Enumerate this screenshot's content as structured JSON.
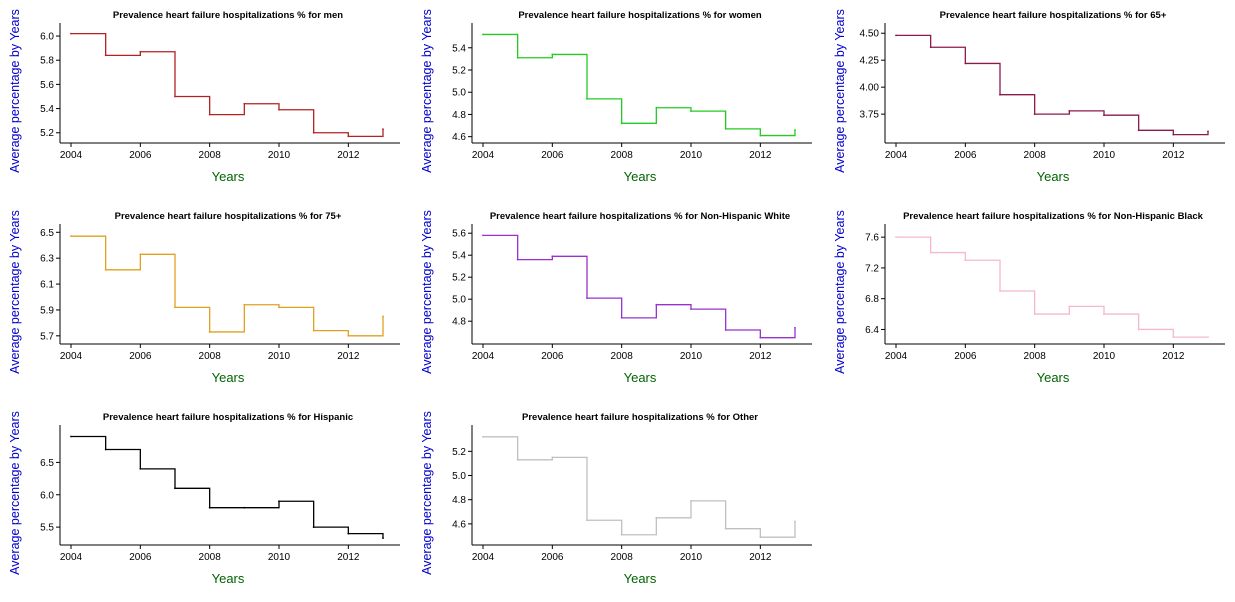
{
  "xlabel": "Years",
  "ylabel": "Average percentage by Years",
  "label_colors": {
    "xlabel": "#006400",
    "ylabel": "#0000cd"
  },
  "chart_data": [
    {
      "type": "line",
      "step": "post",
      "title": "Prevalence heart failure hospitalizations % for men",
      "color": "#b22222",
      "x": [
        2004,
        2005,
        2006,
        2007,
        2008,
        2009,
        2010,
        2011,
        2012,
        2013
      ],
      "values": [
        6.02,
        5.84,
        5.87,
        5.5,
        5.35,
        5.44,
        5.39,
        5.2,
        5.17,
        5.23
      ],
      "xticks": [
        "2004",
        "2006",
        "2008",
        "2010",
        "2012"
      ],
      "yticks": [
        "5.2",
        "5.4",
        "5.6",
        "5.8",
        "6.0"
      ],
      "xlim": [
        2004,
        2013
      ],
      "ylim": [
        5.14,
        6.05
      ]
    },
    {
      "type": "line",
      "step": "post",
      "title": "Prevalence heart failure hospitalizations % for women",
      "color": "#22cc22",
      "x": [
        2004,
        2005,
        2006,
        2007,
        2008,
        2009,
        2010,
        2011,
        2012,
        2013
      ],
      "values": [
        5.52,
        5.31,
        5.34,
        4.94,
        4.72,
        4.86,
        4.83,
        4.67,
        4.61,
        4.66
      ],
      "xticks": [
        "2004",
        "2006",
        "2008",
        "2010",
        "2012"
      ],
      "yticks": [
        "4.6",
        "4.8",
        "5.0",
        "5.2",
        "5.4"
      ],
      "xlim": [
        2004,
        2013
      ],
      "ylim": [
        4.57,
        5.56
      ]
    },
    {
      "type": "line",
      "step": "post",
      "title": "Prevalence heart failure hospitalizations % for 65+",
      "color": "#8b1a4a",
      "x": [
        2004,
        2005,
        2006,
        2007,
        2008,
        2009,
        2010,
        2011,
        2012,
        2013
      ],
      "values": [
        4.48,
        4.37,
        4.22,
        3.93,
        3.75,
        3.78,
        3.74,
        3.6,
        3.56,
        3.59
      ],
      "xticks": [
        "2004",
        "2006",
        "2008",
        "2010",
        "2012"
      ],
      "yticks": [
        "3.75",
        "4.00",
        "4.25",
        "4.50"
      ],
      "xlim": [
        2004,
        2013
      ],
      "ylim": [
        3.51,
        4.53
      ]
    },
    {
      "type": "line",
      "step": "post",
      "title": "Prevalence heart failure hospitalizations % for 75+",
      "color": "#e0a020",
      "x": [
        2004,
        2005,
        2006,
        2007,
        2008,
        2009,
        2010,
        2011,
        2012,
        2013
      ],
      "values": [
        6.47,
        6.21,
        6.33,
        5.92,
        5.73,
        5.94,
        5.92,
        5.74,
        5.7,
        5.85
      ],
      "xticks": [
        "2004",
        "2006",
        "2008",
        "2010",
        "2012"
      ],
      "yticks": [
        "5.7",
        "5.9",
        "6.1",
        "6.3",
        "6.5"
      ],
      "xlim": [
        2004,
        2013
      ],
      "ylim": [
        5.66,
        6.51
      ]
    },
    {
      "type": "line",
      "step": "post",
      "title": "Prevalence heart failure hospitalizations % for Non-Hispanic White",
      "color": "#9932cc",
      "x": [
        2004,
        2005,
        2006,
        2007,
        2008,
        2009,
        2010,
        2011,
        2012,
        2013
      ],
      "values": [
        5.58,
        5.36,
        5.39,
        5.01,
        4.83,
        4.95,
        4.91,
        4.72,
        4.65,
        4.74
      ],
      "xticks": [
        "2004",
        "2006",
        "2008",
        "2010",
        "2012"
      ],
      "yticks": [
        "4.8",
        "5.0",
        "5.2",
        "5.4",
        "5.6"
      ],
      "xlim": [
        2004,
        2013
      ],
      "ylim": [
        4.62,
        5.62
      ]
    },
    {
      "type": "line",
      "step": "post",
      "title": "Prevalence heart failure hospitalizations % for Non-Hispanic Black",
      "color": "#f5b8d0",
      "x": [
        2004,
        2005,
        2006,
        2007,
        2008,
        2009,
        2010,
        2011,
        2012,
        2013
      ],
      "values": [
        7.6,
        7.4,
        7.3,
        6.9,
        6.6,
        6.7,
        6.6,
        6.4,
        6.3,
        6.3
      ],
      "xticks": [
        "2004",
        "2006",
        "2008",
        "2010",
        "2012"
      ],
      "yticks": [
        "6.4",
        "6.8",
        "7.2",
        "7.6"
      ],
      "xlim": [
        2004,
        2013
      ],
      "ylim": [
        6.25,
        7.68
      ]
    },
    {
      "type": "line",
      "step": "post",
      "title": "Prevalence heart failure hospitalizations % for Hispanic",
      "color": "#000000",
      "x": [
        2004,
        2005,
        2006,
        2007,
        2008,
        2009,
        2010,
        2011,
        2012,
        2013
      ],
      "values": [
        6.9,
        6.7,
        6.4,
        6.1,
        5.8,
        5.8,
        5.9,
        5.5,
        5.4,
        5.33
      ],
      "xticks": [
        "2004",
        "2006",
        "2008",
        "2010",
        "2012"
      ],
      "yticks": [
        "5.5",
        "6.0",
        "6.5"
      ],
      "xlim": [
        2004,
        2013
      ],
      "ylim": [
        5.27,
        6.97
      ]
    },
    {
      "type": "line",
      "step": "post",
      "title": "Prevalence heart failure hospitalizations % for Other",
      "color": "#c0c0c0",
      "x": [
        2004,
        2005,
        2006,
        2007,
        2008,
        2009,
        2010,
        2011,
        2012,
        2013
      ],
      "values": [
        5.32,
        5.13,
        5.15,
        4.63,
        4.51,
        4.65,
        4.79,
        4.56,
        4.49,
        4.62
      ],
      "xticks": [
        "2004",
        "2006",
        "2008",
        "2010",
        "2012"
      ],
      "yticks": [
        "4.6",
        "4.8",
        "5.0",
        "5.2"
      ],
      "xlim": [
        2004,
        2013
      ],
      "ylim": [
        4.45,
        5.36
      ]
    }
  ]
}
